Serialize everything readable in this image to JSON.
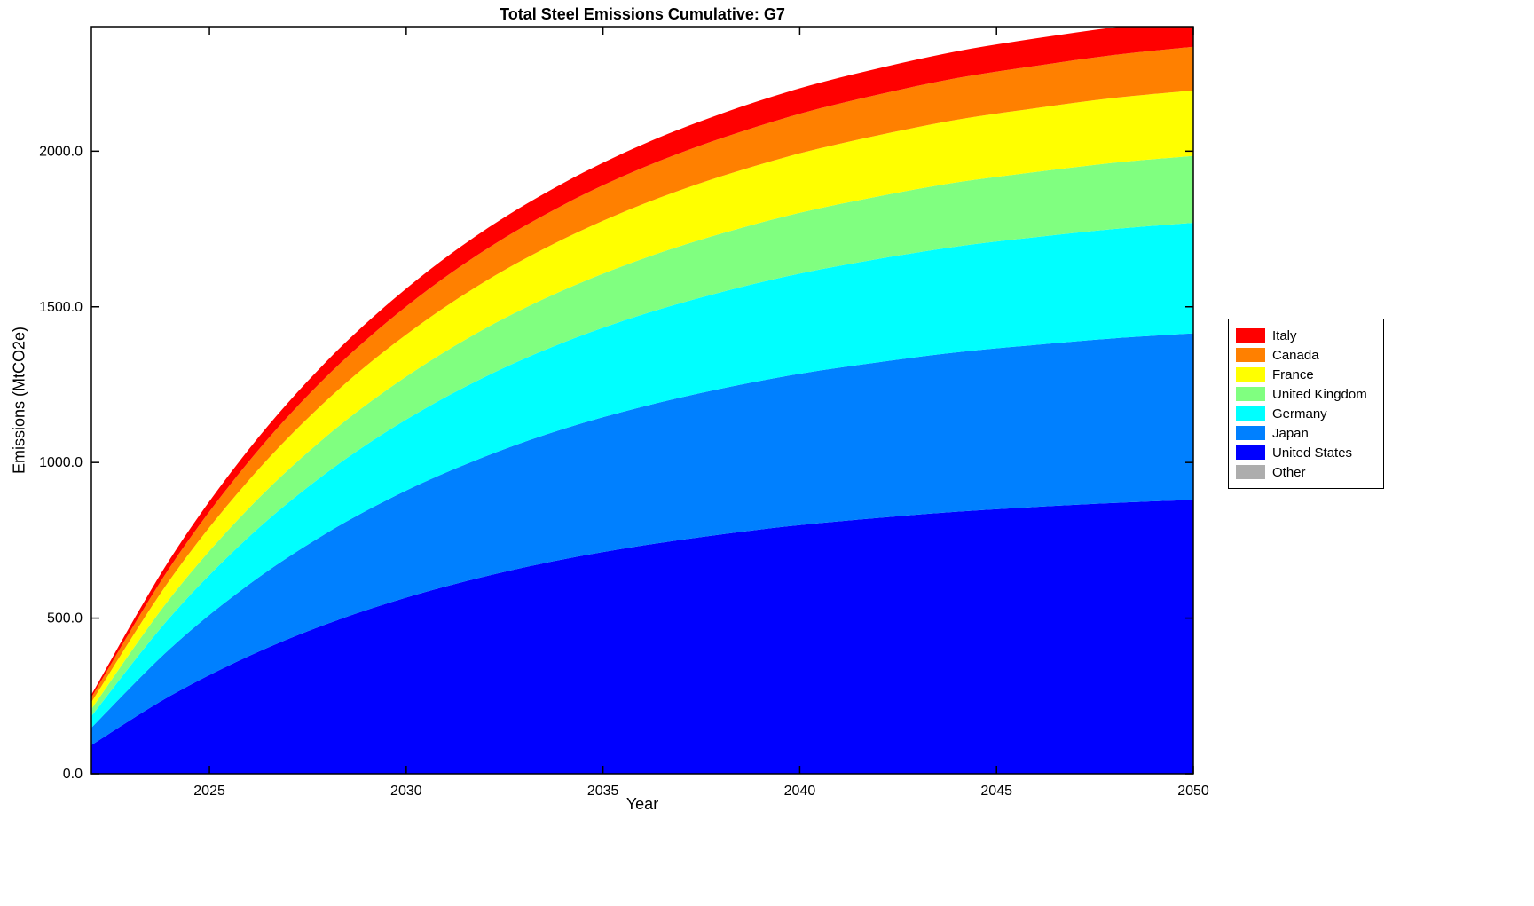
{
  "figure": {
    "background": "#FFFFFF",
    "axis_color": "#000000"
  },
  "chart_data": {
    "type": "area",
    "subtype": "stacked-cumulative",
    "title": "Total Steel Emissions Cumulative: G7",
    "xlabel": "Year",
    "ylabel": "Emissions (MtCO2e)",
    "x": [
      2022,
      2024,
      2026,
      2028,
      2030,
      2032,
      2034,
      2036,
      2038,
      2040,
      2042,
      2044,
      2046,
      2048,
      2050
    ],
    "xlim": [
      2022,
      2050
    ],
    "ylim": [
      0,
      2400
    ],
    "xticks": [
      2025,
      2030,
      2035,
      2040,
      2045,
      2050
    ],
    "ytick_values": [
      0,
      500,
      1000,
      1500,
      2000
    ],
    "ytick_labels": [
      "0.0",
      "500.0",
      "1000.0",
      "1500.0",
      "2000.0"
    ],
    "grid": false,
    "box": true,
    "series": [
      {
        "name": "United States",
        "color": "#0000FF",
        "values": [
          92,
          250,
          378,
          482,
          566,
          634,
          689,
          733,
          769,
          799,
          822,
          842,
          857,
          870,
          880
        ]
      },
      {
        "name": "Japan",
        "color": "#0080FF",
        "values": [
          56,
          152,
          230,
          293,
          344,
          385,
          419,
          446,
          468,
          486,
          500,
          512,
          521,
          529,
          535
        ]
      },
      {
        "name": "Germany",
        "color": "#00FFFF",
        "values": [
          37,
          101,
          153,
          194,
          228,
          256,
          278,
          296,
          310,
          322,
          332,
          340,
          346,
          351,
          355
        ]
      },
      {
        "name": "United Kingdom",
        "color": "#80FF80",
        "values": [
          23,
          61,
          92,
          118,
          138,
          155,
          168,
          179,
          188,
          195,
          201,
          206,
          209,
          213,
          215
        ]
      },
      {
        "name": "France",
        "color": "#FFFF00",
        "values": [
          22,
          60,
          90,
          115,
          135,
          151,
          164,
          175,
          184,
          191,
          196,
          201,
          205,
          208,
          210
        ]
      },
      {
        "name": "Canada",
        "color": "#FF8000",
        "values": [
          15,
          40,
          60,
          77,
          90,
          101,
          110,
          117,
          122,
          127,
          131,
          134,
          136,
          138,
          140
        ]
      },
      {
        "name": "Italy",
        "color": "#FF0000",
        "values": [
          9,
          26,
          39,
          49,
          58,
          65,
          70,
          75,
          79,
          82,
          84,
          86,
          88,
          89,
          90
        ]
      },
      {
        "name": "Other",
        "color": "#ADADAD",
        "values": [
          0,
          0,
          0,
          0,
          0,
          0,
          0,
          0,
          0,
          0,
          0,
          0,
          0,
          0,
          0
        ]
      }
    ],
    "legend": {
      "position": "right-outside",
      "entries": [
        {
          "label": "Italy",
          "color": "#FF0000"
        },
        {
          "label": "Canada",
          "color": "#FF8000"
        },
        {
          "label": "France",
          "color": "#FFFF00"
        },
        {
          "label": "United Kingdom",
          "color": "#80FF80"
        },
        {
          "label": "Germany",
          "color": "#00FFFF"
        },
        {
          "label": "Japan",
          "color": "#0080FF"
        },
        {
          "label": "United States",
          "color": "#0000FF"
        },
        {
          "label": "Other",
          "color": "#ADADAD"
        }
      ]
    }
  }
}
